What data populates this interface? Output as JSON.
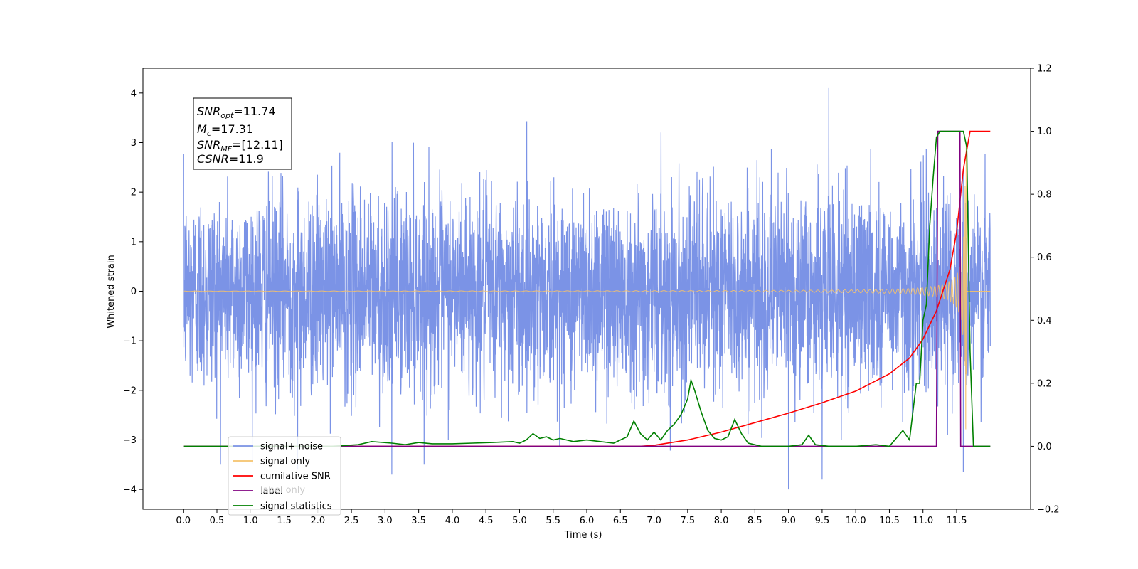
{
  "chart_data": {
    "type": "line",
    "xlabel": "Time (s)",
    "ylabel": "Whitened strain",
    "xlim": [
      -0.6,
      12.6
    ],
    "ylim": [
      -4.4,
      4.5
    ],
    "ylim_right": [
      -0.2,
      1.2
    ],
    "x_ticks": [
      "0.0",
      "0.5",
      "1.0",
      "1.5",
      "2.0",
      "2.5",
      "3.0",
      "3.5",
      "4.0",
      "4.5",
      "5.0",
      "5.5",
      "6.0",
      "6.5",
      "7.0",
      "7.5",
      "8.0",
      "8.5",
      "9.0",
      "9.5",
      "10.0",
      "10.5",
      "11.0",
      "11.5"
    ],
    "y_ticks_left": [
      "4",
      "3",
      "2",
      "1",
      "0",
      "−1",
      "−2",
      "−3",
      "−4"
    ],
    "y_ticks_right": [
      "1.2",
      "1.0",
      "0.8",
      "0.6",
      "0.4",
      "0.2",
      "0.0",
      "−0.2"
    ],
    "grid": false,
    "legend_position": "bottom-left",
    "annotation": {
      "snr_opt": "=11.74",
      "mc": "=17.31",
      "snr_mf": "=[12.11]",
      "csnr": "=11.9"
    },
    "series": [
      {
        "name": "signal+ noise",
        "axis": "left",
        "color": "#7b93e6",
        "kind": "noisy",
        "x_range": [
          0.0,
          12.0
        ],
        "amplitude_std": 1.0,
        "extremes": [
          [
            1.7,
            -3.6
          ],
          [
            9.6,
            4.1
          ],
          [
            9.0,
            -4.0
          ],
          [
            9.5,
            -3.8
          ],
          [
            3.1,
            -3.7
          ],
          [
            11.6,
            -3.65
          ]
        ]
      },
      {
        "name": "signal only",
        "axis": "left",
        "color": "#f5c26b",
        "kind": "chirp",
        "x_range": [
          0.0,
          12.0
        ],
        "merger_time": 11.65,
        "peak_amplitude": 3.0
      },
      {
        "name": "cumilative SNR",
        "axis": "right",
        "color": "#ff0000",
        "x": [
          0.0,
          6.8,
          7.0,
          7.5,
          8.0,
          8.5,
          9.0,
          9.5,
          10.0,
          10.5,
          10.8,
          11.0,
          11.2,
          11.4,
          11.5,
          11.6,
          11.7,
          12.0
        ],
        "y": [
          0.0,
          0.0,
          0.003,
          0.02,
          0.045,
          0.075,
          0.105,
          0.138,
          0.175,
          0.23,
          0.28,
          0.34,
          0.43,
          0.56,
          0.68,
          0.88,
          1.0,
          1.0
        ]
      },
      {
        "name": "label",
        "axis": "right",
        "color": "#800080",
        "x": [
          0.0,
          11.2,
          11.22,
          11.55,
          11.56,
          12.0
        ],
        "y": [
          0.0,
          0.0,
          1.0,
          1.0,
          0.0,
          0.0
        ]
      },
      {
        "name": "signal statistics",
        "axis": "right",
        "color": "#008000",
        "x": [
          0.0,
          2.2,
          2.6,
          2.8,
          3.1,
          3.3,
          3.5,
          3.7,
          4.0,
          4.3,
          4.6,
          4.9,
          5.0,
          5.1,
          5.2,
          5.3,
          5.4,
          5.5,
          5.6,
          5.8,
          6.0,
          6.2,
          6.4,
          6.6,
          6.7,
          6.8,
          6.9,
          7.0,
          7.1,
          7.2,
          7.3,
          7.4,
          7.5,
          7.55,
          7.6,
          7.7,
          7.8,
          7.9,
          8.0,
          8.1,
          8.2,
          8.3,
          8.4,
          8.6,
          9.0,
          9.2,
          9.3,
          9.4,
          9.6,
          10.0,
          10.3,
          10.5,
          10.7,
          10.8,
          10.9,
          10.95,
          11.0,
          11.05,
          11.1,
          11.15,
          11.2,
          11.25,
          11.3,
          11.5,
          11.6,
          11.65,
          11.7,
          11.75,
          11.8,
          12.0
        ],
        "y": [
          0.0,
          0.0,
          0.005,
          0.015,
          0.01,
          0.005,
          0.012,
          0.008,
          0.008,
          0.01,
          0.012,
          0.015,
          0.01,
          0.02,
          0.04,
          0.025,
          0.03,
          0.02,
          0.025,
          0.015,
          0.02,
          0.015,
          0.01,
          0.03,
          0.08,
          0.04,
          0.02,
          0.045,
          0.02,
          0.05,
          0.07,
          0.1,
          0.15,
          0.21,
          0.18,
          0.11,
          0.05,
          0.025,
          0.02,
          0.03,
          0.085,
          0.04,
          0.01,
          0.0,
          0.0,
          0.005,
          0.035,
          0.005,
          0.0,
          0.0,
          0.005,
          0.0,
          0.05,
          0.02,
          0.2,
          0.2,
          0.4,
          0.45,
          0.7,
          0.85,
          0.98,
          1.0,
          1.0,
          1.0,
          1.0,
          0.95,
          0.3,
          0.0,
          0.0,
          0.0
        ]
      }
    ],
    "legend": [
      {
        "label": "signal+ noise",
        "color": "#7b93e6"
      },
      {
        "label": "signal only",
        "color": "#f5c26b"
      },
      {
        "label": "cumilative SNR",
        "color": "#ff0000"
      },
      {
        "label": "label",
        "color": "#800080"
      },
      {
        "label": "signal statistics",
        "color": "#008000"
      }
    ],
    "legend_occluded_text": "label only"
  }
}
